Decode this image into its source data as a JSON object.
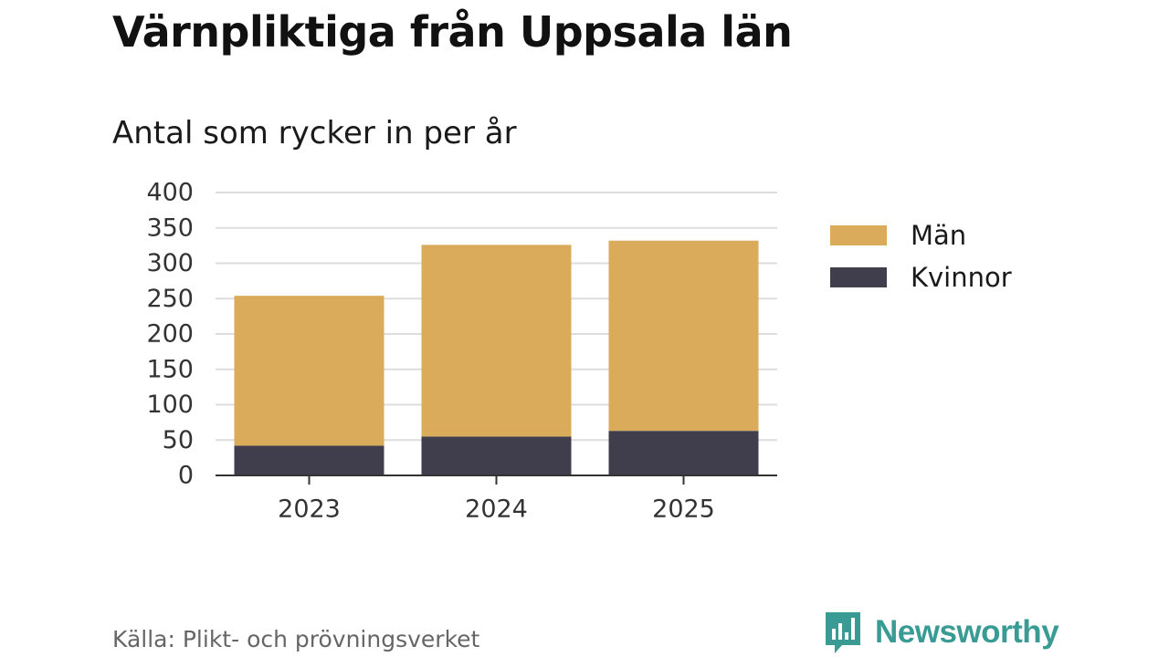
{
  "chart_data": {
    "type": "bar",
    "stacked": true,
    "title": "Värnpliktiga från Uppsala län",
    "subtitle": "Antal som rycker in per år",
    "categories": [
      "2023",
      "2024",
      "2025"
    ],
    "series": [
      {
        "name": "Kvinnor",
        "color": "#403d4d",
        "values": [
          42,
          55,
          63
        ]
      },
      {
        "name": "Män",
        "color": "#d9ab5a",
        "values": [
          212,
          271,
          269
        ]
      }
    ],
    "yticks": [
      0,
      50,
      100,
      150,
      200,
      250,
      300,
      350,
      400
    ],
    "ylim": [
      0,
      400
    ],
    "xlabel": "",
    "ylabel": "",
    "legend": {
      "position": "right",
      "items": [
        {
          "label": "Män",
          "color": "#d9ab5a"
        },
        {
          "label": "Kvinnor",
          "color": "#403d4d"
        }
      ]
    },
    "grid": true
  },
  "footer": {
    "source": "Källa: Plikt- och prövningsverket",
    "brand": "Newsworthy",
    "brand_color": "#3a9b95",
    "brand_icon": "bar-chart-speech-bubble-icon"
  }
}
